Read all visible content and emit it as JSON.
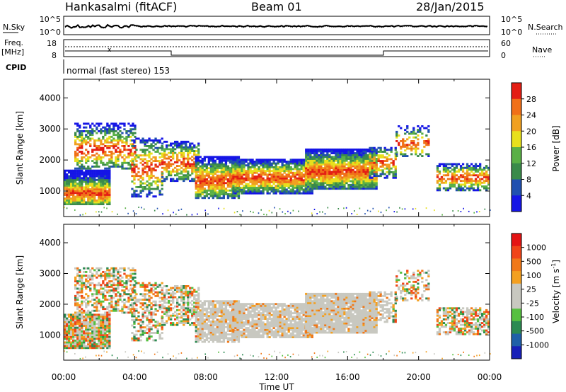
{
  "header": {
    "station": "Hankasalmi (fitACF)",
    "beam": "Beam 01",
    "date": "28/Jan/2015"
  },
  "noise_panel": {
    "left_label": "N.Sky",
    "left_ticks": [
      "10^5",
      "10^0"
    ],
    "right_ticks": [
      "10^5",
      "10^0"
    ],
    "right_label": "N.Search"
  },
  "freq_panel": {
    "left_label_line1": "Freq.",
    "left_label_line2": "[MHz]",
    "left_ticks": [
      "18",
      "8"
    ],
    "right_ticks": [
      "60",
      "0"
    ],
    "right_label": "Nave",
    "cpid_label": "CPID",
    "cpid_text": "normal (fast stereo) 153"
  },
  "time_axis": {
    "label": "Time UT",
    "ticks": [
      "00:00",
      "04:00",
      "08:00",
      "12:00",
      "16:00",
      "20:00",
      "00:00"
    ]
  },
  "chart_data": [
    {
      "type": "heatmap",
      "name": "power-panel",
      "ylabel": "Slant Range [km]",
      "ylim": [
        180,
        4600
      ],
      "yticks": [
        "1000",
        "2000",
        "3000",
        "4000"
      ],
      "xlim_hours": [
        0,
        24
      ],
      "colorbar_label": "Power [dB]",
      "colorbar_ticks": [
        "4",
        "8",
        "12",
        "16",
        "20",
        "24",
        "28"
      ],
      "colors": [
        "#1515e6",
        "#2050b0",
        "#3a8a4a",
        "#5ab046",
        "#e8e01c",
        "#f0a020",
        "#f07018",
        "#e41e14"
      ]
    },
    {
      "type": "heatmap",
      "name": "velocity-panel",
      "ylabel": "Slant Range [km]",
      "ylim": [
        180,
        4600
      ],
      "yticks": [
        "1000",
        "2000",
        "3000",
        "4000"
      ],
      "xlim_hours": [
        0,
        24
      ],
      "colorbar_label": "Velocity [m s",
      "colorbar_label_sup": "-1",
      "colorbar_label_end": "]",
      "colorbar_ticks": [
        "1000",
        "500",
        "100",
        "25",
        "-25",
        "-100",
        "-500",
        "-1000"
      ],
      "colors": [
        "#1820b8",
        "#2060a8",
        "#2c8a52",
        "#56c040",
        "#c8c8c0",
        "#c8c8c0",
        "#f4a020",
        "#f07818",
        "#f04418",
        "#e41414"
      ]
    }
  ]
}
